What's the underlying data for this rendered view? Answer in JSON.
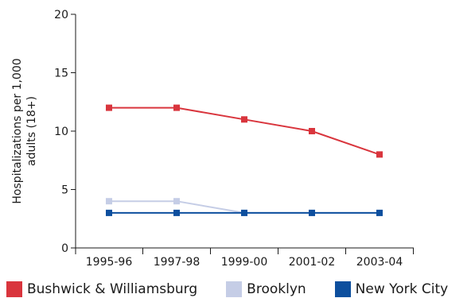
{
  "chart_data": {
    "type": "line",
    "title": "",
    "xlabel": "",
    "ylabel_lines": [
      "Hospitalizations per 1,000",
      "adults (18+)"
    ],
    "categories": [
      "1995-96",
      "1997-98",
      "1999-00",
      "2001-02",
      "2003-04"
    ],
    "ylim": [
      0,
      20
    ],
    "yticks": [
      0,
      5,
      10,
      15,
      20
    ],
    "grid": false,
    "legend_position": "bottom",
    "series": [
      {
        "name": "Bushwick & Williamsburg",
        "color": "#d9353d",
        "values": [
          12,
          12,
          11,
          10,
          8
        ]
      },
      {
        "name": "Brooklyn",
        "color": "#c5cde6",
        "values": [
          4,
          4,
          3,
          3,
          3
        ]
      },
      {
        "name": "New York City",
        "color": "#0d4f9e",
        "values": [
          3,
          3,
          3,
          3,
          3
        ]
      }
    ]
  }
}
